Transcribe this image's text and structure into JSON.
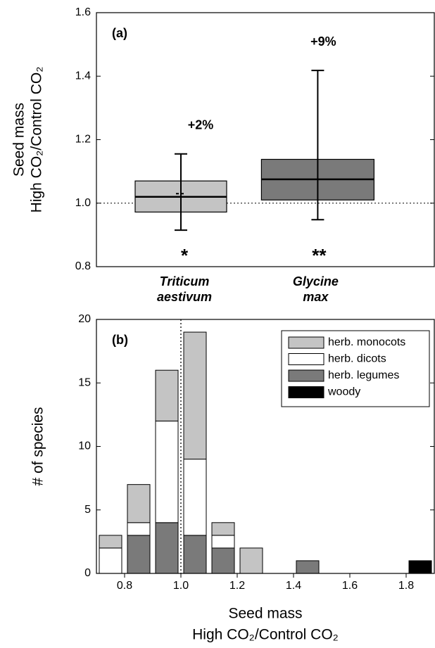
{
  "chart_data": [
    {
      "type": "box",
      "panel_label": "(a)",
      "y_label": [
        "Seed mass",
        "High CO₂/Control CO₂"
      ],
      "categories": [
        "Triticum aestivum",
        "Glycine max"
      ],
      "boxes": [
        {
          "whislo": 0.915,
          "q1": 0.972,
          "med": 1.02,
          "q3": 1.07,
          "whishi": 1.155,
          "mean": 1.03,
          "color": "#c4c4c4"
        },
        {
          "whislo": 0.948,
          "q1": 1.01,
          "med": 1.075,
          "q3": 1.138,
          "whishi": 1.418,
          "color": "#7a7a7a"
        }
      ],
      "change_labels": [
        "+2%",
        "+9%"
      ],
      "significance": [
        "*",
        "**"
      ],
      "reference_line": 1,
      "ylim": [
        0.8,
        1.6
      ],
      "yticks": [
        0.8,
        {
          "value": 1,
          "label": "1.0"
        },
        1.2,
        1.4,
        1.6
      ]
    },
    {
      "type": "stacked-histogram",
      "panel_label": "(b)",
      "x_label": [
        "Seed mass",
        "High CO₂/Control CO₂"
      ],
      "y_label": "# of species",
      "bins": [
        0.7,
        0.8,
        0.9,
        1.0,
        1.1,
        1.2,
        1.3,
        1.4,
        1.5,
        1.6,
        1.7,
        1.8,
        1.9
      ],
      "series": [
        {
          "name": "herb. monocots",
          "color": "#c4c4c4",
          "values": [
            1,
            3,
            4,
            10,
            1,
            2,
            0,
            0,
            0,
            0,
            0,
            0
          ]
        },
        {
          "name": "herb. dicots",
          "color": "#ffffff",
          "values": [
            2,
            1,
            8,
            6,
            1,
            0,
            0,
            0,
            0,
            0,
            0,
            0
          ]
        },
        {
          "name": "herb. legumes",
          "color": "#7a7a7a",
          "values": [
            0,
            3,
            4,
            3,
            2,
            0,
            0,
            1,
            0,
            0,
            0,
            0
          ]
        },
        {
          "name": "woody",
          "color": "#000000",
          "values": [
            0,
            0,
            0,
            0,
            0,
            0,
            0,
            0,
            0,
            0,
            0,
            1
          ]
        }
      ],
      "reference_line": 1,
      "xlim": [
        0.7,
        1.9
      ],
      "xticks": [
        0.8,
        {
          "value": 1,
          "label": "1.0"
        },
        1.2,
        1.4,
        1.6,
        1.8
      ],
      "ylim": [
        0,
        20
      ],
      "yticks": [
        0,
        5,
        10,
        15,
        20
      ],
      "legend": "top-right"
    }
  ]
}
